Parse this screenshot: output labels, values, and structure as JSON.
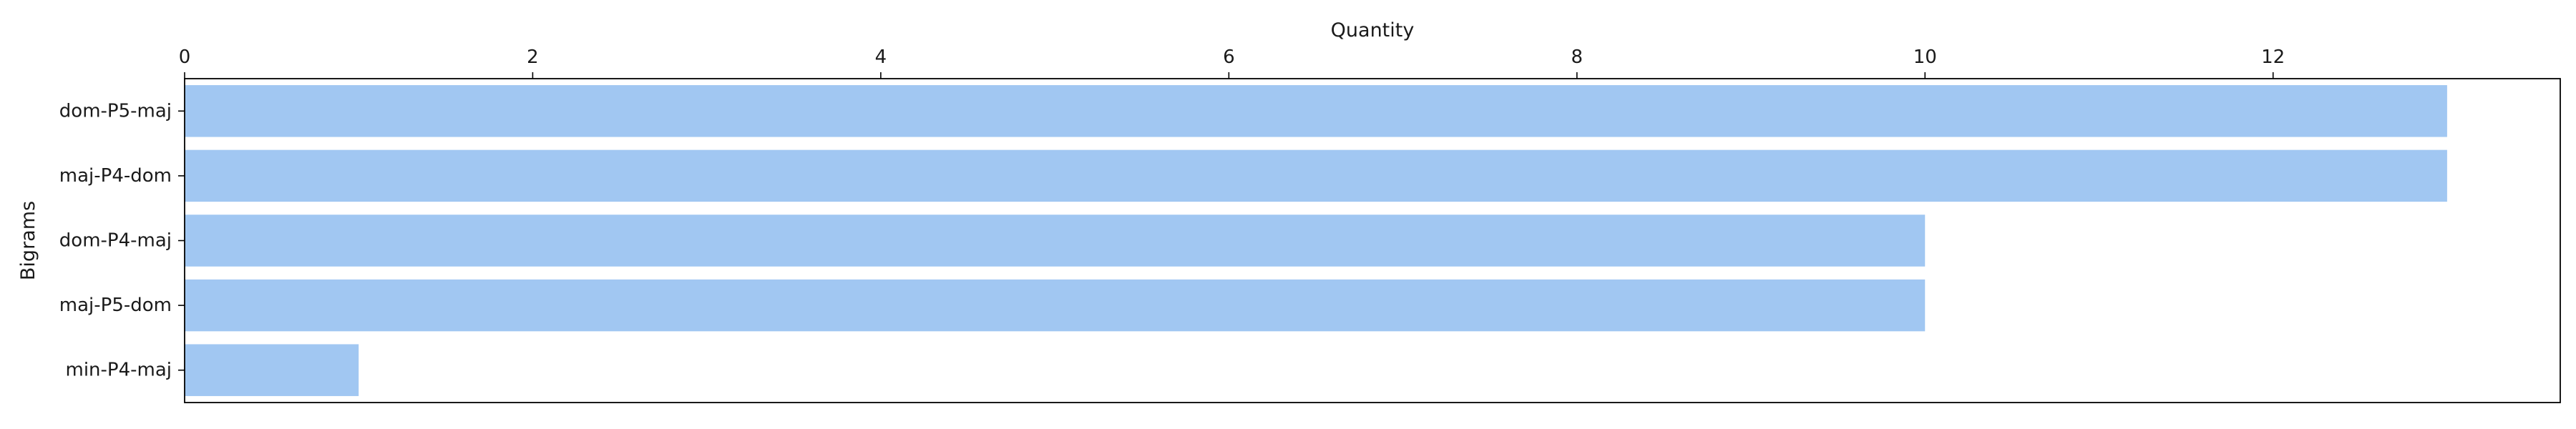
{
  "chart_data": {
    "type": "bar",
    "orientation": "horizontal",
    "xlabel": "Quantity",
    "ylabel": "Bigrams",
    "x_axis_position": "top",
    "categories": [
      "dom-P5-maj",
      "maj-P4-dom",
      "dom-P4-maj",
      "maj-P5-dom",
      "min-P4-maj"
    ],
    "values": [
      13,
      13,
      10,
      10,
      1
    ],
    "xlim": [
      0,
      13.65
    ],
    "xticks": [
      0,
      2,
      4,
      6,
      8,
      10,
      12
    ],
    "bar_color": "#a1c7f2",
    "grid": false,
    "legend": "none"
  }
}
